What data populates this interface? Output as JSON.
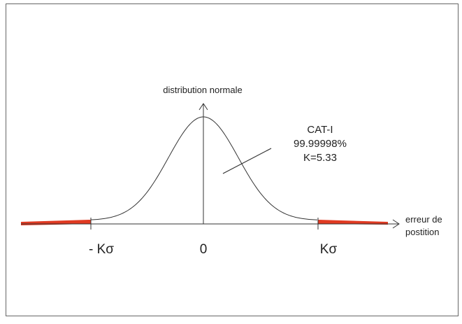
{
  "diagram": {
    "y_axis_label": "distribution normale",
    "x_axis_label": [
      "erreur de",
      "postition"
    ],
    "tick_labels": [
      "- Kσ",
      "0",
      "Kσ"
    ],
    "annotation": [
      "CAT-I",
      "99.99998%",
      "K=5.33"
    ]
  }
}
